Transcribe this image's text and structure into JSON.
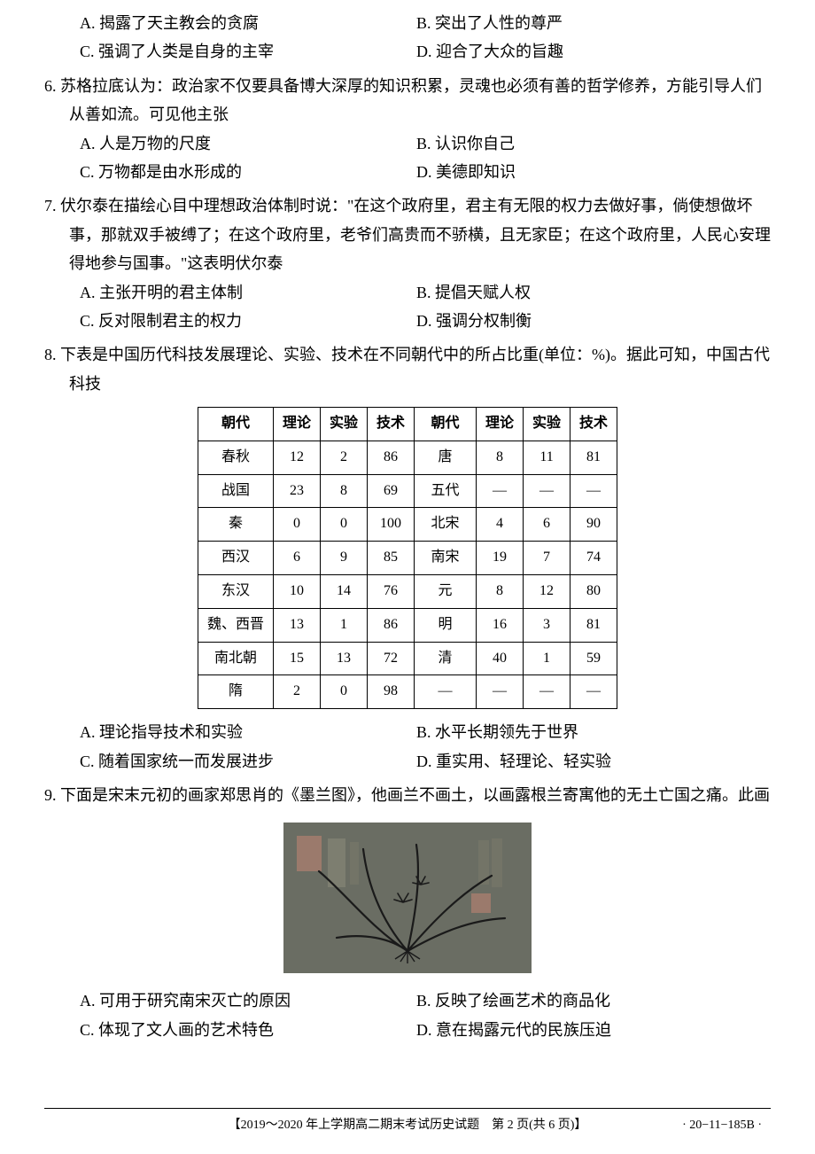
{
  "q5_options": {
    "A": "A. 揭露了天主教会的贪腐",
    "B": "B. 突出了人性的尊严",
    "C": "C. 强调了人类是自身的主宰",
    "D": "D. 迎合了大众的旨趣"
  },
  "q6": {
    "text": "6. 苏格拉底认为：政治家不仅要具备博大深厚的知识积累，灵魂也必须有善的哲学修养，方能引导人们从善如流。可见他主张",
    "A": "A. 人是万物的尺度",
    "B": "B. 认识你自己",
    "C": "C. 万物都是由水形成的",
    "D": "D. 美德即知识"
  },
  "q7": {
    "text": "7. 伏尔泰在描绘心目中理想政治体制时说：\"在这个政府里，君主有无限的权力去做好事，倘使想做坏事，那就双手被缚了；在这个政府里，老爷们高贵而不骄横，且无家臣；在这个政府里，人民心安理得地参与国事。\"这表明伏尔泰",
    "A": "A. 主张开明的君主体制",
    "B": "B. 提倡天赋人权",
    "C": "C. 反对限制君主的权力",
    "D": "D. 强调分权制衡"
  },
  "q8": {
    "text": "8. 下表是中国历代科技发展理论、实验、技术在不同朝代中的所占比重(单位：%)。据此可知，中国古代科技",
    "headers": [
      "朝代",
      "理论",
      "实验",
      "技术",
      "朝代",
      "理论",
      "实验",
      "技术"
    ],
    "rows": [
      [
        "春秋",
        "12",
        "2",
        "86",
        "唐",
        "8",
        "11",
        "81"
      ],
      [
        "战国",
        "23",
        "8",
        "69",
        "五代",
        "—",
        "—",
        "—"
      ],
      [
        "秦",
        "0",
        "0",
        "100",
        "北宋",
        "4",
        "6",
        "90"
      ],
      [
        "西汉",
        "6",
        "9",
        "85",
        "南宋",
        "19",
        "7",
        "74"
      ],
      [
        "东汉",
        "10",
        "14",
        "76",
        "元",
        "8",
        "12",
        "80"
      ],
      [
        "魏、西晋",
        "13",
        "1",
        "86",
        "明",
        "16",
        "3",
        "81"
      ],
      [
        "南北朝",
        "15",
        "13",
        "72",
        "清",
        "40",
        "1",
        "59"
      ],
      [
        "隋",
        "2",
        "0",
        "98",
        "—",
        "—",
        "—",
        "—"
      ]
    ],
    "A": "A. 理论指导技术和实验",
    "B": "B. 水平长期领先于世界",
    "C": "C. 随着国家统一而发展进步",
    "D": "D. 重实用、轻理论、轻实验"
  },
  "q9": {
    "text": "9. 下面是宋末元初的画家郑思肖的《墨兰图》，他画兰不画土，以画露根兰寄寓他的无土亡国之痛。此画",
    "A": "A. 可用于研究南宋灭亡的原因",
    "B": "B. 反映了绘画艺术的商品化",
    "C": "C. 体现了文人画的艺术特色",
    "D": "D. 意在揭露元代的民族压迫"
  },
  "footer": {
    "text": "【2019～2020 年上学期高二期末考试历史试题　第 2 页(共 6 页)】",
    "code": "· 20−11−185B ·"
  },
  "painting_style": {
    "bg": "#6a6d63",
    "stroke": "#1a1a1a",
    "seal": "#b08070"
  }
}
